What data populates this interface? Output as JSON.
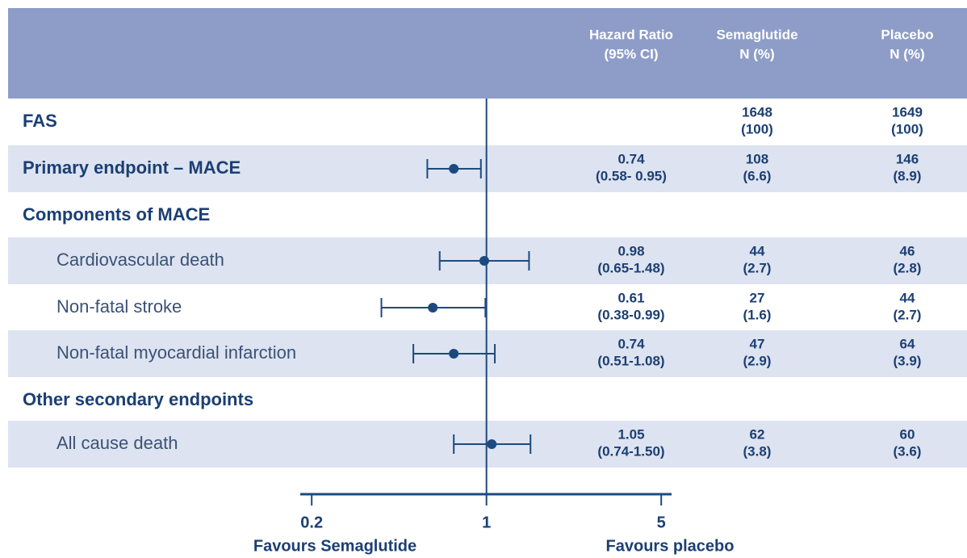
{
  "chart_data": {
    "type": "forest",
    "color": "#1c4a80",
    "xscale": "log",
    "xlim": [
      0.18,
      5.5
    ],
    "xticks": [
      0.2,
      1,
      5
    ],
    "reference_line": 1,
    "x_label_left": "Favours Semaglutide",
    "x_label_right": "Favours placebo",
    "columns": [
      [
        "Hazard Ratio",
        "(95% CI)"
      ],
      [
        "Semaglutide",
        "N (%)"
      ],
      [
        "Placebo",
        "N (%)"
      ]
    ],
    "rows": [
      {
        "label": "FAS",
        "level": 0,
        "hr": null,
        "ci_low": null,
        "ci_high": null,
        "ci_label": null,
        "semaglutide_n": 1648,
        "semaglutide_pct": "(100)",
        "placebo_n": 1649,
        "placebo_pct": "(100)"
      },
      {
        "label": "Primary endpoint – MACE",
        "level": 0,
        "hr": 0.74,
        "ci_low": 0.58,
        "ci_high": 0.95,
        "ci_label": "(0.58- 0.95)",
        "semaglutide_n": 108,
        "semaglutide_pct": "(6.6)",
        "placebo_n": 146,
        "placebo_pct": "(8.9)"
      },
      {
        "label": "Components of MACE",
        "level": 0,
        "hr": null,
        "ci_low": null,
        "ci_high": null,
        "ci_label": null,
        "semaglutide_n": null,
        "semaglutide_pct": null,
        "placebo_n": null,
        "placebo_pct": null
      },
      {
        "label": "Cardiovascular death",
        "level": 1,
        "hr": 0.98,
        "ci_low": 0.65,
        "ci_high": 1.48,
        "ci_label": "(0.65-1.48)",
        "semaglutide_n": 44,
        "semaglutide_pct": "(2.7)",
        "placebo_n": 46,
        "placebo_pct": "(2.8)"
      },
      {
        "label": "Non-fatal stroke",
        "level": 1,
        "hr": 0.61,
        "ci_low": 0.38,
        "ci_high": 0.99,
        "ci_label": "(0.38-0.99)",
        "semaglutide_n": 27,
        "semaglutide_pct": "(1.6)",
        "placebo_n": 44,
        "placebo_pct": "(2.7)"
      },
      {
        "label": "Non-fatal myocardial infarction",
        "level": 1,
        "hr": 0.74,
        "ci_low": 0.51,
        "ci_high": 1.08,
        "ci_label": "(0.51-1.08)",
        "semaglutide_n": 47,
        "semaglutide_pct": "(2.9)",
        "placebo_n": 64,
        "placebo_pct": "(3.9)"
      },
      {
        "label": "Other secondary endpoints",
        "level": 0,
        "hr": null,
        "ci_low": null,
        "ci_high": null,
        "ci_label": null,
        "semaglutide_n": null,
        "semaglutide_pct": null,
        "placebo_n": null,
        "placebo_pct": null
      },
      {
        "label": "All cause death",
        "level": 1,
        "hr": 1.05,
        "ci_low": 0.74,
        "ci_high": 1.5,
        "ci_label": "(0.74-1.50)",
        "semaglutide_n": 62,
        "semaglutide_pct": "(3.8)",
        "placebo_n": 60,
        "placebo_pct": "(3.6)"
      }
    ]
  }
}
